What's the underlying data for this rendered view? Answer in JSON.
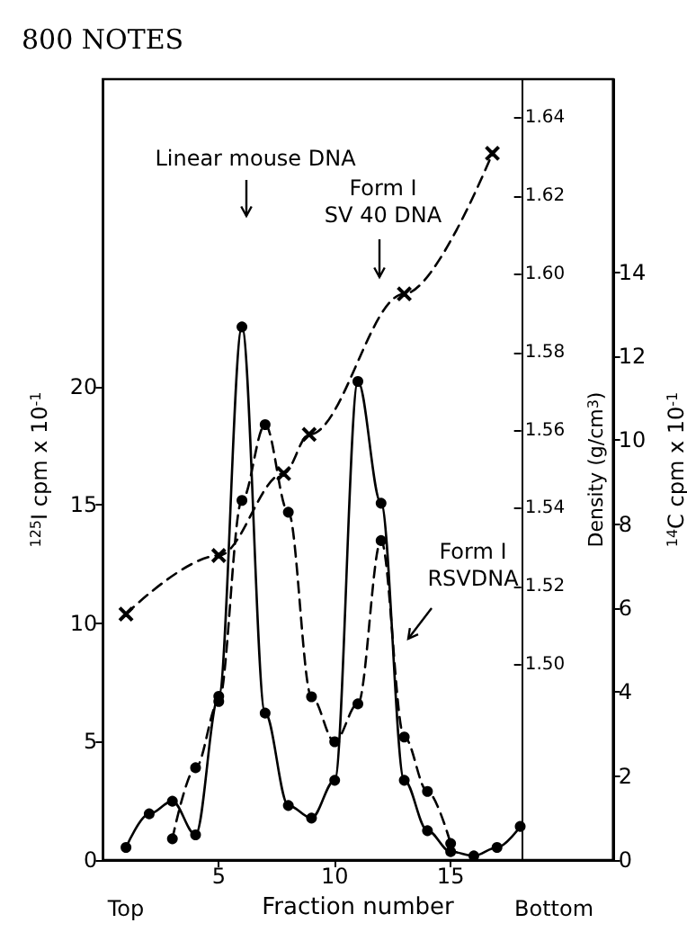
{
  "chart_data": {
    "type": "line",
    "xlabel": "Fraction number",
    "ylabel": "$^{125}$I cpm x 10$^{-1}$",
    "y2label": "Density (g/cm$^{3}$)",
    "y3label": "$^{14}$C cpm x 10$^{-1}$",
    "xlim": [
      0,
      22
    ],
    "xticks": [
      5,
      10,
      15
    ],
    "ylim": [
      0,
      33
    ],
    "yticks": [
      0,
      5,
      10,
      15,
      20
    ],
    "y2lim": [
      1.45,
      1.65
    ],
    "y2ticks": [
      {
        "value": 1.5,
        "label": "1.50"
      },
      1.52,
      1.54,
      1.56,
      1.58,
      {
        "value": 1.6,
        "label": "1.60"
      },
      1.62,
      1.64
    ],
    "y3lim": [
      0,
      18.6
    ],
    "y3ticks": [
      0,
      2,
      4,
      6,
      8,
      10,
      12,
      14
    ],
    "series": [
      {
        "color": "#000000",
        "line_style": "dashed",
        "marker": "circle",
        "x": [
          3,
          4,
          5,
          6,
          7,
          8,
          9,
          10,
          11,
          12,
          13,
          14,
          15
        ],
        "values": [
          0.9,
          3.9,
          6.7,
          15.2,
          18.4,
          14.7,
          6.9,
          5.0,
          6.6,
          13.5,
          5.2,
          2.9,
          0.7
        ]
      },
      {
        "color": "#000000",
        "line_style": "solid",
        "marker": "circle",
        "axis": "y3",
        "x": [
          1,
          2,
          3,
          4,
          5,
          6,
          7,
          8,
          9,
          10,
          11,
          12,
          13,
          14,
          15,
          16,
          17,
          18
        ],
        "values": [
          0.3,
          1.1,
          1.4,
          0.6,
          3.9,
          12.7,
          3.5,
          1.3,
          1.0,
          1.9,
          11.4,
          8.5,
          1.9,
          0.7,
          0.2,
          0.1,
          0.3,
          0.8
        ]
      },
      {
        "color": "#000000",
        "line_style": "dashed",
        "marker": "cross",
        "axis": "y2",
        "x": [
          1,
          5,
          7.8,
          8.9,
          13,
          16.8
        ],
        "values": [
          1.513,
          1.528,
          1.549,
          1.559,
          1.595,
          1.631
        ]
      }
    ],
    "annotations": [
      "800 NOTES",
      "Top",
      "Bottom",
      "Linear mouse DNA",
      "Form I\nSV 40 DNA",
      "Form I\nRSVDNA"
    ]
  }
}
